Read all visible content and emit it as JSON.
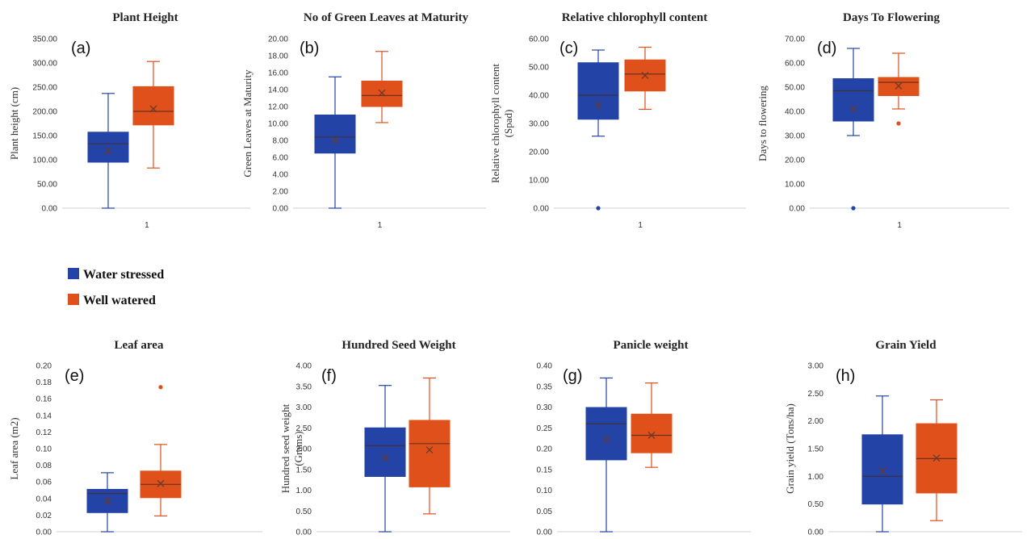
{
  "colors": {
    "water_stressed": "#2344a6",
    "well_watered": "#e0501b",
    "mean_marker": "#6b3a2a"
  },
  "legend": {
    "items": [
      "Water stressed",
      "Well watered"
    ]
  },
  "chart_data": [
    {
      "type": "box",
      "panel": "(a)",
      "title": "Plant Height",
      "ylabel": [
        "Plant height  (cm)"
      ],
      "xlabel": "",
      "category": "1",
      "ylim": [
        0,
        350
      ],
      "yticks": [
        "0.00",
        "50.00",
        "100.00",
        "150.00",
        "200.00",
        "250.00",
        "300.00",
        "350.00"
      ],
      "series": [
        {
          "name": "Water stressed",
          "min": 0,
          "q1": 95,
          "median": 133,
          "q3": 157,
          "max": 237,
          "mean": 118,
          "outliers": []
        },
        {
          "name": "Well watered",
          "min": 83,
          "q1": 172,
          "median": 200,
          "q3": 251,
          "max": 303,
          "mean": 205,
          "outliers": []
        }
      ]
    },
    {
      "type": "box",
      "panel": "(b)",
      "title": "No of Green Leaves at Maturity",
      "ylabel": [
        "Green Leaves  at Maturity"
      ],
      "xlabel": "",
      "category": "1",
      "ylim": [
        0,
        20
      ],
      "yticks": [
        "0.00",
        "2.00",
        "4.00",
        "6.00",
        "8.00",
        "10.00",
        "12.00",
        "14.00",
        "16.00",
        "18.00",
        "20.00"
      ],
      "series": [
        {
          "name": "Water stressed",
          "min": 0,
          "q1": 6.5,
          "median": 8.4,
          "q3": 11.0,
          "max": 15.5,
          "mean": 8.0,
          "outliers": []
        },
        {
          "name": "Well watered",
          "min": 10.1,
          "q1": 12.0,
          "median": 13.3,
          "q3": 15.0,
          "max": 18.5,
          "mean": 13.6,
          "outliers": []
        }
      ]
    },
    {
      "type": "box",
      "panel": "(c)",
      "title": "Relative chlorophyll content",
      "ylabel": [
        "Relative  chlorophyll  content",
        "(Spad)"
      ],
      "xlabel": "",
      "category": "1",
      "ylim": [
        0,
        60
      ],
      "yticks": [
        "0.00",
        "10.00",
        "20.00",
        "30.00",
        "40.00",
        "50.00",
        "60.00"
      ],
      "series": [
        {
          "name": "Water stressed",
          "min": 25.5,
          "q1": 31.5,
          "median": 40,
          "q3": 51.5,
          "max": 56,
          "mean": 36.5,
          "outliers": [
            0
          ]
        },
        {
          "name": "Well watered",
          "min": 35,
          "q1": 41.5,
          "median": 47.5,
          "q3": 52.5,
          "max": 57,
          "mean": 47,
          "outliers": []
        }
      ]
    },
    {
      "type": "box",
      "panel": "(d)",
      "title": "Days To Flowering",
      "ylabel": [
        "Days to flowering"
      ],
      "xlabel": "",
      "category": "1",
      "ylim": [
        0,
        70
      ],
      "yticks": [
        "0.00",
        "10.00",
        "20.00",
        "30.00",
        "40.00",
        "50.00",
        "60.00",
        "70.00"
      ],
      "series": [
        {
          "name": "Water stressed",
          "min": 30,
          "q1": 36,
          "median": 48.5,
          "q3": 53.5,
          "max": 66,
          "mean": 41,
          "outliers": [
            0
          ]
        },
        {
          "name": "Well watered",
          "min": 41,
          "q1": 46.5,
          "median": 52,
          "q3": 54,
          "max": 64,
          "mean": 50.5,
          "outliers": [
            35
          ]
        }
      ]
    },
    {
      "type": "box",
      "panel": "(e)",
      "title": "Leaf area",
      "ylabel": [
        "Leaf area (m2)"
      ],
      "xlabel": "",
      "category": "",
      "ylim": [
        0,
        0.2
      ],
      "yticks": [
        "0.00",
        "0.02",
        "0.04",
        "0.06",
        "0.08",
        "0.10",
        "0.12",
        "0.14",
        "0.16",
        "0.18",
        "0.20"
      ],
      "series": [
        {
          "name": "Water stressed",
          "min": 0,
          "q1": 0.023,
          "median": 0.046,
          "q3": 0.051,
          "max": 0.071,
          "mean": 0.037,
          "outliers": []
        },
        {
          "name": "Well watered",
          "min": 0.019,
          "q1": 0.041,
          "median": 0.057,
          "q3": 0.073,
          "max": 0.105,
          "mean": 0.058,
          "outliers": [
            0.174
          ]
        }
      ]
    },
    {
      "type": "box",
      "panel": "(f)",
      "title": "Hundred  Seed Weight",
      "ylabel": [
        "Hundred  seed  weight",
        "(Grams)"
      ],
      "xlabel": "",
      "category": "",
      "ylim": [
        0,
        4
      ],
      "yticks": [
        "0.00",
        "0.50",
        "1.00",
        "1.50",
        "2.00",
        "2.50",
        "3.00",
        "3.50",
        "4.00"
      ],
      "series": [
        {
          "name": "Water stressed",
          "min": 0,
          "q1": 1.33,
          "median": 2.07,
          "q3": 2.5,
          "max": 3.52,
          "mean": 1.78,
          "outliers": []
        },
        {
          "name": "Well watered",
          "min": 0.43,
          "q1": 1.08,
          "median": 2.12,
          "q3": 2.68,
          "max": 3.7,
          "mean": 1.97,
          "outliers": []
        }
      ]
    },
    {
      "type": "box",
      "panel": "(g)",
      "title": "Panicle weight",
      "ylabel": [],
      "xlabel": "",
      "category": "",
      "ylim": [
        0,
        0.4
      ],
      "yticks": [
        "0.00",
        "0.05",
        "0.10",
        "0.15",
        "0.20",
        "0.25",
        "0.30",
        "0.35",
        "0.40"
      ],
      "series": [
        {
          "name": "Water stressed",
          "min": 0,
          "q1": 0.173,
          "median": 0.26,
          "q3": 0.299,
          "max": 0.37,
          "mean": 0.222,
          "outliers": []
        },
        {
          "name": "Well watered",
          "min": 0.155,
          "q1": 0.19,
          "median": 0.232,
          "q3": 0.283,
          "max": 0.358,
          "mean": 0.232,
          "outliers": []
        }
      ]
    },
    {
      "type": "box",
      "panel": "(h)",
      "title": "Grain Yield",
      "ylabel": [
        "Grain  yield  (Tons/ha)"
      ],
      "xlabel": "",
      "category": "",
      "ylim": [
        0,
        3
      ],
      "yticks": [
        "0.00",
        "0.50",
        "1.00",
        "1.50",
        "2.00",
        "2.50",
        "3.00"
      ],
      "series": [
        {
          "name": "Water stressed",
          "min": 0,
          "q1": 0.5,
          "median": 1.0,
          "q3": 1.75,
          "max": 2.45,
          "mean": 1.1,
          "outliers": []
        },
        {
          "name": "Well watered",
          "min": 0.2,
          "q1": 0.7,
          "median": 1.32,
          "q3": 1.95,
          "max": 2.38,
          "mean": 1.33,
          "outliers": []
        }
      ]
    }
  ]
}
